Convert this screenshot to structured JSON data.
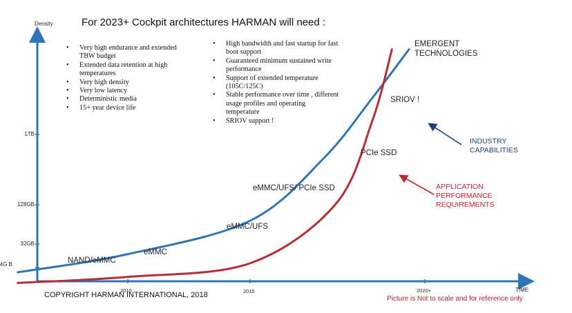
{
  "title": "For 2023+ Cockpit architectures HARMAN will need :",
  "requirements_left": [
    "Very high endurance and extended TBW budget",
    "Extended data retention at high temperatures",
    "Very high density",
    "Very low latency",
    "Deterministic media",
    "15+ year device life"
  ],
  "requirements_right": [
    "High bandwidth and fast startup for fast boot support",
    "Guaranteed minimum sustained write performance",
    "Support of extended temperature (105C/125C)",
    "Stable performance over time , different usage profiles and operating temperature",
    "SRIOV support !"
  ],
  "chart_data": {
    "type": "line",
    "title": "",
    "xlabel": "TIME",
    "ylabel": "Density",
    "x_ticks": [
      "2010",
      "2015",
      "2020+"
    ],
    "y_ticks": [
      "4G B",
      "32GB",
      "128GB",
      "1TB"
    ],
    "scale_note": "not to scale",
    "series": [
      {
        "name": "INDUSTRY CAPABILITIES",
        "color": "#2e75b6",
        "points": [
          [
            2005.5,
            0.0
          ],
          [
            2010,
            0.12
          ],
          [
            2015,
            0.34
          ],
          [
            2018,
            0.75
          ],
          [
            2020,
            1.15
          ],
          [
            2021.5,
            1.47
          ]
        ]
      },
      {
        "name": "APPLICATION PERFORMANCE REQUIREMENTS",
        "color": "#b72d35",
        "points": [
          [
            2005.5,
            -0.07
          ],
          [
            2010,
            -0.03
          ],
          [
            2015,
            0.06
          ],
          [
            2018.5,
            0.45
          ],
          [
            2020,
            1.0
          ],
          [
            2020.8,
            1.47
          ]
        ]
      }
    ],
    "stage_labels": [
      "NAND/eMMC",
      "eMMC",
      "eMMC/UFS",
      "eMMC/UFS/ PCIe SSD",
      "PCIe SSD",
      "SRIOV !"
    ],
    "annotations": {
      "emergent": "EMERGENT TECHNOLOGIES",
      "industry": "INDUSTRY CAPABILITIES",
      "application": "APPLICATION PERFORMANCE REQUIREMENTS"
    }
  },
  "footer": {
    "copyright": "COPYRIGHT HARMAN INTERNATIONAL, 2018",
    "disclaimer": "Picture is Not to scale and for reference only"
  },
  "colors": {
    "axis": "#2e75b6",
    "industry": "#2e75b6",
    "application": "#b72d35",
    "industry_text": "#1f3f78",
    "application_text": "#c0262b"
  }
}
